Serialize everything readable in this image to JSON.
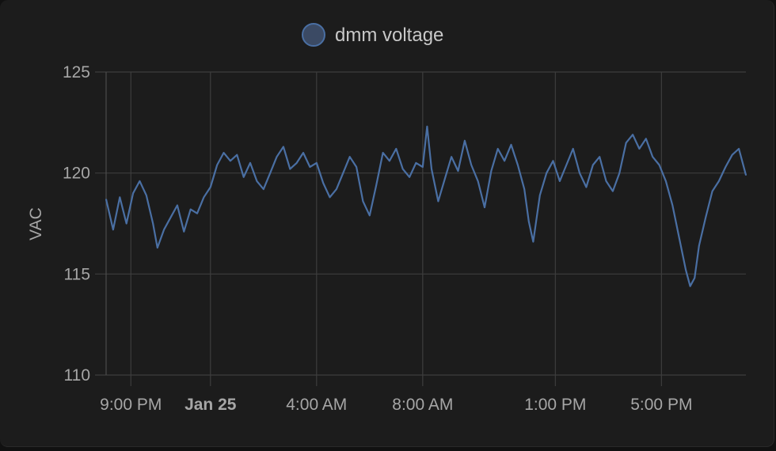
{
  "chart_data": {
    "type": "line",
    "title": "",
    "xlabel": "",
    "ylabel": "VAC",
    "y_ticks": [
      110,
      115,
      120,
      125
    ],
    "ylim": [
      110,
      125
    ],
    "x_ticks": [
      {
        "label": "9:00 PM",
        "time": "2024-01-24T21:00",
        "bold": false
      },
      {
        "label": "Jan 25",
        "time": "2024-01-25T00:00",
        "bold": true
      },
      {
        "label": "4:00 AM",
        "time": "2024-01-25T04:00",
        "bold": false
      },
      {
        "label": "8:00 AM",
        "time": "2024-01-25T08:00",
        "bold": false
      },
      {
        "label": "1:00 PM",
        "time": "2024-01-25T13:00",
        "bold": false
      },
      {
        "label": "5:00 PM",
        "time": "2024-01-25T17:00",
        "bold": false
      }
    ],
    "xlim": [
      "2024-01-24T20:04",
      "2024-01-25T20:11"
    ],
    "grid": true,
    "legend_position": "top-center",
    "series": [
      {
        "name": "dmm voltage",
        "color": "#4a6fa3",
        "points": [
          [
            "2024-01-24T20:04",
            118.7
          ],
          [
            "2024-01-24T20:20",
            117.2
          ],
          [
            "2024-01-24T20:35",
            118.8
          ],
          [
            "2024-01-24T20:50",
            117.5
          ],
          [
            "2024-01-24T21:05",
            119.0
          ],
          [
            "2024-01-24T21:20",
            119.6
          ],
          [
            "2024-01-24T21:35",
            118.9
          ],
          [
            "2024-01-24T21:50",
            117.5
          ],
          [
            "2024-01-24T22:00",
            116.3
          ],
          [
            "2024-01-24T22:15",
            117.2
          ],
          [
            "2024-01-24T22:30",
            117.8
          ],
          [
            "2024-01-24T22:45",
            118.4
          ],
          [
            "2024-01-24T23:00",
            117.1
          ],
          [
            "2024-01-24T23:15",
            118.2
          ],
          [
            "2024-01-24T23:30",
            118.0
          ],
          [
            "2024-01-24T23:45",
            118.8
          ],
          [
            "2024-01-25T00:00",
            119.3
          ],
          [
            "2024-01-25T00:15",
            120.4
          ],
          [
            "2024-01-25T00:30",
            121.0
          ],
          [
            "2024-01-25T00:45",
            120.6
          ],
          [
            "2024-01-25T01:00",
            120.9
          ],
          [
            "2024-01-25T01:15",
            119.8
          ],
          [
            "2024-01-25T01:30",
            120.5
          ],
          [
            "2024-01-25T01:45",
            119.6
          ],
          [
            "2024-01-25T02:00",
            119.2
          ],
          [
            "2024-01-25T02:15",
            120.0
          ],
          [
            "2024-01-25T02:30",
            120.8
          ],
          [
            "2024-01-25T02:45",
            121.3
          ],
          [
            "2024-01-25T03:00",
            120.2
          ],
          [
            "2024-01-25T03:15",
            120.5
          ],
          [
            "2024-01-25T03:30",
            121.0
          ],
          [
            "2024-01-25T03:45",
            120.3
          ],
          [
            "2024-01-25T04:00",
            120.5
          ],
          [
            "2024-01-25T04:15",
            119.5
          ],
          [
            "2024-01-25T04:30",
            118.8
          ],
          [
            "2024-01-25T04:45",
            119.2
          ],
          [
            "2024-01-25T05:00",
            120.0
          ],
          [
            "2024-01-25T05:15",
            120.8
          ],
          [
            "2024-01-25T05:30",
            120.3
          ],
          [
            "2024-01-25T05:45",
            118.6
          ],
          [
            "2024-01-25T06:00",
            117.9
          ],
          [
            "2024-01-25T06:15",
            119.4
          ],
          [
            "2024-01-25T06:30",
            121.0
          ],
          [
            "2024-01-25T06:45",
            120.6
          ],
          [
            "2024-01-25T07:00",
            121.2
          ],
          [
            "2024-01-25T07:15",
            120.2
          ],
          [
            "2024-01-25T07:30",
            119.8
          ],
          [
            "2024-01-25T07:45",
            120.5
          ],
          [
            "2024-01-25T08:00",
            120.3
          ],
          [
            "2024-01-25T08:10",
            122.3
          ],
          [
            "2024-01-25T08:20",
            120.2
          ],
          [
            "2024-01-25T08:35",
            118.6
          ],
          [
            "2024-01-25T08:50",
            119.7
          ],
          [
            "2024-01-25T09:05",
            120.8
          ],
          [
            "2024-01-25T09:20",
            120.1
          ],
          [
            "2024-01-25T09:35",
            121.6
          ],
          [
            "2024-01-25T09:50",
            120.4
          ],
          [
            "2024-01-25T10:05",
            119.6
          ],
          [
            "2024-01-25T10:20",
            118.3
          ],
          [
            "2024-01-25T10:35",
            120.1
          ],
          [
            "2024-01-25T10:50",
            121.2
          ],
          [
            "2024-01-25T11:05",
            120.6
          ],
          [
            "2024-01-25T11:20",
            121.4
          ],
          [
            "2024-01-25T11:35",
            120.4
          ],
          [
            "2024-01-25T11:50",
            119.2
          ],
          [
            "2024-01-25T12:00",
            117.6
          ],
          [
            "2024-01-25T12:10",
            116.6
          ],
          [
            "2024-01-25T12:25",
            118.9
          ],
          [
            "2024-01-25T12:40",
            120.0
          ],
          [
            "2024-01-25T12:55",
            120.6
          ],
          [
            "2024-01-25T13:10",
            119.6
          ],
          [
            "2024-01-25T13:25",
            120.4
          ],
          [
            "2024-01-25T13:40",
            121.2
          ],
          [
            "2024-01-25T13:55",
            120.0
          ],
          [
            "2024-01-25T14:10",
            119.3
          ],
          [
            "2024-01-25T14:25",
            120.4
          ],
          [
            "2024-01-25T14:40",
            120.8
          ],
          [
            "2024-01-25T14:55",
            119.6
          ],
          [
            "2024-01-25T15:10",
            119.1
          ],
          [
            "2024-01-25T15:25",
            120.0
          ],
          [
            "2024-01-25T15:40",
            121.5
          ],
          [
            "2024-01-25T15:55",
            121.9
          ],
          [
            "2024-01-25T16:10",
            121.2
          ],
          [
            "2024-01-25T16:25",
            121.7
          ],
          [
            "2024-01-25T16:40",
            120.8
          ],
          [
            "2024-01-25T16:55",
            120.4
          ],
          [
            "2024-01-25T17:10",
            119.6
          ],
          [
            "2024-01-25T17:25",
            118.4
          ],
          [
            "2024-01-25T17:40",
            116.8
          ],
          [
            "2024-01-25T17:55",
            115.2
          ],
          [
            "2024-01-25T18:05",
            114.4
          ],
          [
            "2024-01-25T18:15",
            114.8
          ],
          [
            "2024-01-25T18:25",
            116.4
          ],
          [
            "2024-01-25T18:40",
            117.8
          ],
          [
            "2024-01-25T18:55",
            119.1
          ],
          [
            "2024-01-25T19:10",
            119.6
          ],
          [
            "2024-01-25T19:25",
            120.3
          ],
          [
            "2024-01-25T19:40",
            120.9
          ],
          [
            "2024-01-25T19:55",
            121.2
          ],
          [
            "2024-01-25T20:11",
            119.9
          ]
        ]
      }
    ]
  }
}
